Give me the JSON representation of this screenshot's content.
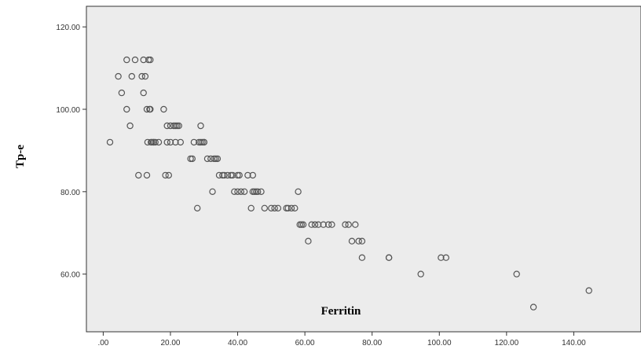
{
  "chart_data": {
    "type": "scatter",
    "title": "",
    "xlabel": "Ferritin",
    "ylabel": "Tp-e",
    "xlim": [
      -5,
      160
    ],
    "ylim": [
      46,
      125
    ],
    "grid": false,
    "legend": "none",
    "x_ticks": [
      ".00",
      "20.00",
      "40.00",
      "60.00",
      "80.00",
      "100.00",
      "120.00",
      "140.00"
    ],
    "x_tick_values": [
      0,
      20,
      40,
      60,
      80,
      100,
      120,
      140
    ],
    "y_ticks": [
      "60.00",
      "80.00",
      "100.00",
      "120.00"
    ],
    "y_tick_values": [
      60,
      80,
      100,
      120
    ],
    "colors": {
      "plot_background": "#ececec",
      "marker_stroke": "#555555",
      "frame": "#333333"
    },
    "x": [
      2,
      4.5,
      5.5,
      7,
      7,
      8,
      8.5,
      9.5,
      10.5,
      11.5,
      12,
      12,
      12.5,
      13,
      13,
      13.2,
      13.5,
      13.8,
      14,
      14,
      14.2,
      14.5,
      15,
      15,
      15.5,
      16.5,
      18,
      18.5,
      19,
      19,
      19.5,
      20,
      20,
      21,
      21.5,
      21.5,
      22,
      22.5,
      23,
      26,
      26.5,
      27,
      28,
      28.5,
      29,
      29,
      29.5,
      30,
      30,
      31,
      32,
      32.5,
      33,
      33.5,
      34,
      34.5,
      35.5,
      36,
      37,
      38,
      38.5,
      39,
      40,
      40,
      40.5,
      41,
      42,
      43,
      44,
      44.5,
      44.5,
      45,
      45.5,
      46,
      47,
      48,
      50,
      51,
      52,
      54.5,
      55,
      56,
      57,
      58,
      58.5,
      59,
      59.5,
      61,
      62,
      63,
      64,
      65.5,
      67,
      68,
      72,
      73,
      74,
      75,
      76,
      77,
      77,
      85,
      85,
      94.5,
      100.5,
      102,
      123,
      128,
      144.5
    ],
    "y": [
      92,
      108,
      104,
      100,
      112,
      96,
      108,
      112,
      84,
      108,
      104,
      112,
      108,
      100,
      84,
      92,
      112,
      100,
      112,
      100,
      92,
      92,
      92,
      92,
      92,
      92,
      100,
      84,
      92,
      96,
      84,
      92,
      96,
      96,
      92,
      96,
      96,
      96,
      92,
      88,
      88,
      92,
      76,
      92,
      96,
      92,
      92,
      92,
      92,
      88,
      88,
      80,
      88,
      88,
      88,
      84,
      84,
      84,
      84,
      84,
      84,
      80,
      84,
      80,
      84,
      80,
      80,
      84,
      76,
      80,
      84,
      80,
      80,
      80,
      80,
      76,
      76,
      76,
      76,
      76,
      76,
      76,
      76,
      80,
      72,
      72,
      72,
      68,
      72,
      72,
      72,
      72,
      72,
      72,
      72,
      72,
      68,
      72,
      68,
      68,
      64,
      64,
      64,
      60,
      64,
      64,
      60,
      52,
      56
    ]
  }
}
